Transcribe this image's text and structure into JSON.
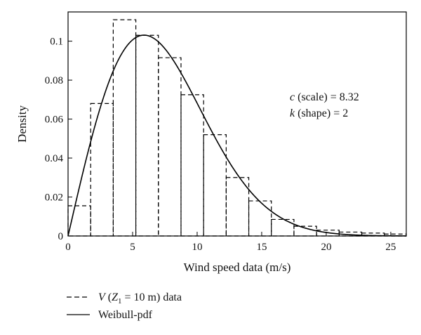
{
  "chart_data": {
    "type": "bar",
    "xlabel": "Wind speed data (m/s)",
    "ylabel": "Density",
    "xlim": [
      0,
      26.2
    ],
    "ylim": [
      0,
      0.115
    ],
    "x_ticks": [
      {
        "value": 0,
        "label": "0"
      },
      {
        "value": 5,
        "label": "5"
      },
      {
        "value": 10,
        "label": "10"
      },
      {
        "value": 15,
        "label": "15"
      },
      {
        "value": 20,
        "label": "20"
      },
      {
        "value": 25,
        "label": "25"
      }
    ],
    "y_ticks": [
      {
        "value": 0,
        "label": "0"
      },
      {
        "value": 0.02,
        "label": "0.02"
      },
      {
        "value": 0.04,
        "label": "0.04"
      },
      {
        "value": 0.06,
        "label": "0.06"
      },
      {
        "value": 0.08,
        "label": "0.08"
      },
      {
        "value": 0.1,
        "label": "0.1"
      }
    ],
    "histogram": {
      "series_name": "V (Z1 = 10 m) data",
      "bin_edges": [
        0,
        1.75,
        3.5,
        5.25,
        7.0,
        8.75,
        10.5,
        12.25,
        14.0,
        15.75,
        17.5,
        19.25,
        21.0,
        22.75,
        24.5,
        26.2
      ],
      "values": [
        0.0155,
        0.068,
        0.111,
        0.103,
        0.0915,
        0.0725,
        0.052,
        0.03,
        0.018,
        0.0085,
        0.005,
        0.003,
        0.002,
        0.0015,
        0.001
      ]
    },
    "weibull": {
      "series_name": "Weibull-pdf",
      "c": 8.32,
      "k": 2
    },
    "annotations": [
      {
        "italic": "c",
        "text": " (scale) = 8.32"
      },
      {
        "italic": "k",
        "text": " (shape) = 2"
      }
    ],
    "legend": {
      "placement": "bottom-left",
      "entries": [
        {
          "style": "dashed",
          "italic": "V",
          "paren_open": " (",
          "sub_base": "Z",
          "sub": "1",
          "rest": " = 10 m) data"
        },
        {
          "style": "solid",
          "text": "Weibull-pdf"
        }
      ]
    },
    "grid": false
  }
}
